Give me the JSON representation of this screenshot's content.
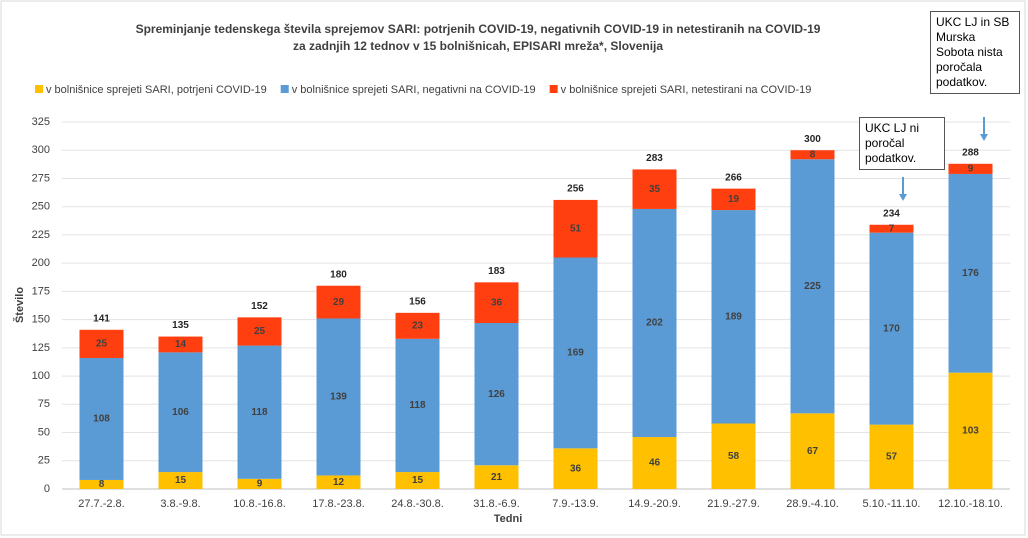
{
  "chart_data": {
    "type": "stacked_bar",
    "title": "Spreminjanje tedenskega števila sprejemov SARI: potrjenih COVID-19, negativnih COVID-19 in netestiranih na COVID-19",
    "subtitle": "za zadnjih 12 tednov v 15 bolnišnicah, EPISARI mreža*, Slovenija",
    "x_label": "Tedni",
    "y_label": "Število",
    "categories": [
      "27.7.-2.8.",
      "3.8.-9.8.",
      "10.8.-16.8.",
      "17.8.-23.8.",
      "24.8.-30.8.",
      "31.8.-6.9.",
      "7.9.-13.9.",
      "14.9.-20.9.",
      "21.9.-27.9.",
      "28.9.-4.10.",
      "5.10.-11.10.",
      "12.10.-18.10."
    ],
    "series": [
      {
        "name": "v bolnišnice sprejeti SARI, potrjeni COVID-19",
        "color": "#ffc000",
        "values": [
          8,
          15,
          9,
          12,
          15,
          21,
          36,
          46,
          58,
          67,
          57,
          103
        ]
      },
      {
        "name": "v bolnišnice sprejeti SARI, negativni na COVID-19",
        "color": "#5b9bd5",
        "values": [
          108,
          106,
          118,
          139,
          118,
          126,
          169,
          202,
          189,
          225,
          170,
          176
        ]
      },
      {
        "name": "v bolnišnice sprejeti SARI, netestirani na COVID-19",
        "color": "#ff3f0f",
        "values": [
          25,
          14,
          25,
          29,
          23,
          36,
          51,
          35,
          19,
          8,
          7,
          9
        ]
      }
    ],
    "totals": [
      141,
      135,
      152,
      180,
      156,
      183,
      256,
      283,
      266,
      300,
      234,
      288
    ],
    "ylim": [
      0,
      325
    ],
    "yticks": [
      0,
      25,
      50,
      75,
      100,
      125,
      150,
      175,
      200,
      225,
      250,
      275,
      300,
      325
    ],
    "grid": true,
    "annotations": [
      "UKC LJ ni poročal podatkov.",
      "UKC LJ in SB Murska Sobota nista poročala podatkov."
    ]
  }
}
